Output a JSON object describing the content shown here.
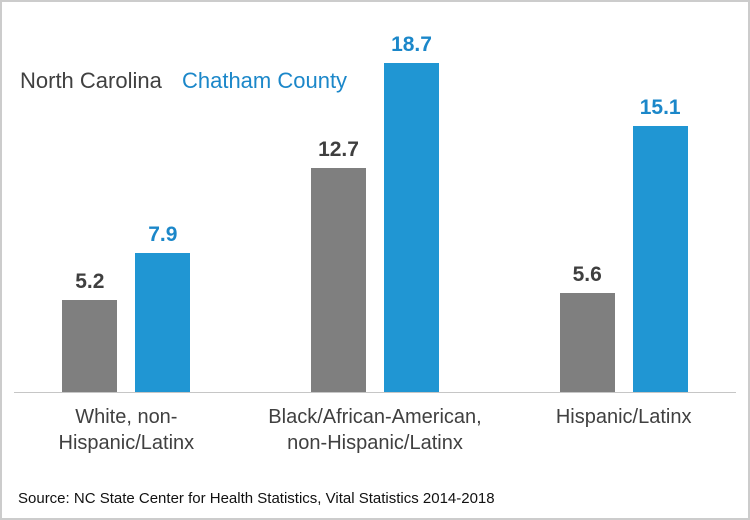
{
  "legend": {
    "nc_label": "North Carolina",
    "county_label": "Chatham County"
  },
  "chart_data": {
    "type": "bar",
    "title": "",
    "categories": [
      "White, non-\nHispanic/Latinx",
      "Black/African-American,\nnon-Hispanic/Latinx",
      "Hispanic/Latinx"
    ],
    "series": [
      {
        "name": "North Carolina",
        "color": "#7f7f7f",
        "label_color": "#3f3f3f",
        "values": [
          5.2,
          12.7,
          5.6
        ]
      },
      {
        "name": "Chatham County",
        "color": "#2096d3",
        "label_color": "#1b87c9",
        "values": [
          7.9,
          18.7,
          15.1
        ]
      }
    ],
    "xlabel": "",
    "ylabel": "",
    "ylim": [
      0,
      20
    ],
    "grid": false,
    "y_axis_visible": false,
    "legend_position": "inline-top-left",
    "data_labels": true
  },
  "source": "Source: NC State Center for Health Statistics, Vital Statistics 2014-2018",
  "colors": {
    "nc_bar": "#7f7f7f",
    "county_bar": "#2096d3",
    "nc_text": "#3f3f3f",
    "county_text": "#1b87c9",
    "axis_line": "#c6c6c6",
    "frame_border": "#cccccc",
    "category_text": "#404040"
  }
}
